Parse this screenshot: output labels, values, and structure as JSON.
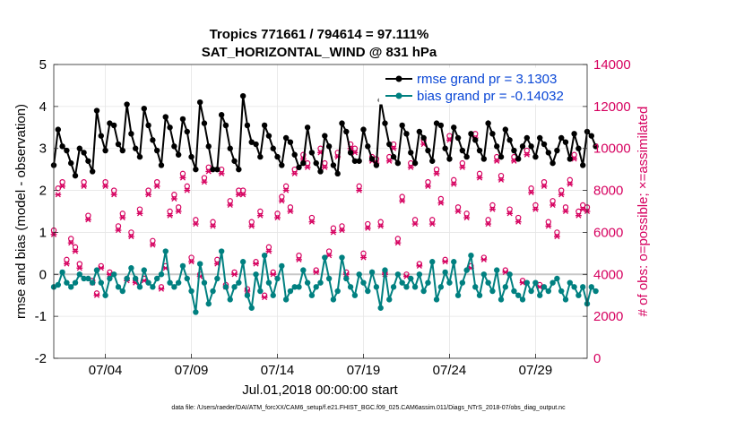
{
  "chart_data": {
    "type": "line",
    "title": "Tropics 771661 / 794614 = 97.111%",
    "subtitle": "SAT_HORIZONTAL_WIND @ 831 hPa",
    "xlabel": "Jul.01,2018 00:00:00 start",
    "ylabel_left": "rmse and bias (model - observation)",
    "ylabel_right": "# of obs: o=possible; ×=assimilated",
    "ylim_left": [
      -2,
      5
    ],
    "ylim_right": [
      0,
      14000
    ],
    "yticks_left": [
      "-2",
      "-1",
      "0",
      "1",
      "2",
      "3",
      "4",
      "5"
    ],
    "yticks_right": [
      "0",
      "2000",
      "4000",
      "6000",
      "8000",
      "10000",
      "12000",
      "14000"
    ],
    "xlim_days": [
      1,
      32
    ],
    "xticks": [
      {
        "day": 4,
        "label": "07/04"
      },
      {
        "day": 9,
        "label": "07/09"
      },
      {
        "day": 14,
        "label": "07/14"
      },
      {
        "day": 19,
        "label": "07/19"
      },
      {
        "day": 24,
        "label": "07/24"
      },
      {
        "day": 29,
        "label": "07/29"
      }
    ],
    "grid": true,
    "legend_position": "top-right",
    "series": [
      {
        "name": "rmse grand pr = 3.1303",
        "color": "#000000",
        "axis": "left",
        "start_day": 1.0,
        "step_days": 0.25,
        "values": [
          2.6,
          3.45,
          3.05,
          2.95,
          2.65,
          2.35,
          3.0,
          2.9,
          2.7,
          2.45,
          3.9,
          3.3,
          2.95,
          3.6,
          3.55,
          3.1,
          2.95,
          4.05,
          3.35,
          3.0,
          2.8,
          3.95,
          3.55,
          3.2,
          2.95,
          2.6,
          3.75,
          3.5,
          3.05,
          2.85,
          3.7,
          3.4,
          2.8,
          2.5,
          4.1,
          3.6,
          3.05,
          2.5,
          2.5,
          3.8,
          3.55,
          3.0,
          2.7,
          2.5,
          4.25,
          3.55,
          3.15,
          3.1,
          2.8,
          3.55,
          3.3,
          3.0,
          2.8,
          2.6,
          3.25,
          3.15,
          2.85,
          2.55,
          2.65,
          3.5,
          2.9,
          2.65,
          2.45,
          3.3,
          3.05,
          2.6,
          2.4,
          3.6,
          3.4,
          2.9,
          2.7,
          2.7,
          3.45,
          3.05,
          2.75,
          2.6,
          4.15,
          3.6,
          3.1,
          2.8,
          2.65,
          3.55,
          3.35,
          2.9,
          2.65,
          3.4,
          3.25,
          2.95,
          2.7,
          3.6,
          3.55,
          3.0,
          2.75,
          3.5,
          3.25,
          2.95,
          2.8,
          3.35,
          3.2,
          2.95,
          2.75,
          3.6,
          3.35,
          3.05,
          2.8,
          3.45,
          3.2,
          2.95,
          2.75,
          3.05,
          3.25,
          3.05,
          2.8,
          3.25,
          3.1,
          2.9,
          2.65,
          2.95,
          3.25,
          3.15,
          2.75,
          3.35,
          3.0,
          2.6,
          3.4,
          3.3,
          3.05
        ]
      },
      {
        "name": "bias grand pr = -0.14032",
        "color": "#008080",
        "axis": "left",
        "start_day": 1.0,
        "step_days": 0.25,
        "values": [
          -0.3,
          -0.25,
          0.05,
          -0.2,
          -0.3,
          -0.2,
          0.0,
          -0.1,
          -0.1,
          -0.2,
          0.1,
          -0.2,
          -0.5,
          -0.1,
          0.0,
          -0.3,
          -0.4,
          -0.1,
          0.15,
          -0.1,
          -0.3,
          0.1,
          -0.2,
          -0.3,
          -0.1,
          0.0,
          0.55,
          -0.2,
          -0.3,
          -0.2,
          0.2,
          -0.1,
          -0.4,
          -0.9,
          0.25,
          -0.2,
          -0.7,
          -0.4,
          -0.1,
          0.55,
          -0.3,
          -0.6,
          -0.3,
          -0.2,
          0.3,
          -0.5,
          -0.8,
          0.0,
          -0.4,
          0.45,
          -0.2,
          -0.5,
          -0.1,
          0.2,
          -0.6,
          -0.4,
          -0.3,
          -0.3,
          0.1,
          -0.2,
          -0.5,
          -0.3,
          -0.2,
          0.4,
          -0.1,
          -0.6,
          -0.4,
          0.4,
          -0.1,
          -0.3,
          -0.5,
          0.0,
          -0.2,
          -0.4,
          0.05,
          -0.3,
          -0.8,
          0.1,
          -0.6,
          -0.3,
          0.0,
          -0.2,
          -0.3,
          -0.1,
          -0.3,
          0.0,
          -0.4,
          -0.2,
          0.3,
          -0.6,
          -0.3,
          0.05,
          -0.2,
          0.3,
          -0.5,
          -0.2,
          0.1,
          0.45,
          -0.3,
          -0.5,
          0.0,
          -0.2,
          -0.4,
          0.1,
          -0.6,
          -0.3,
          0.0,
          -0.4,
          -0.5,
          -0.6,
          -0.2,
          -0.4,
          -0.2,
          -0.5,
          -0.3,
          -0.4,
          -0.2,
          -0.1,
          -0.4,
          -0.6,
          -0.2,
          -0.3,
          -0.5,
          -0.3,
          -0.7,
          -0.3,
          -0.4
        ]
      },
      {
        "name": "# obs possible",
        "color": "#d6005f",
        "marker": "o",
        "axis": "right",
        "start_day": 1.0,
        "step_days": 0.25,
        "values": [
          6100,
          8100,
          8400,
          4700,
          5700,
          5300,
          4500,
          8400,
          6800,
          3700,
          3100,
          4400,
          8400,
          4100,
          8000,
          6300,
          6900,
          3800,
          6000,
          3700,
          7100,
          3800,
          8000,
          5600,
          8400,
          3400,
          4400,
          7000,
          7800,
          7200,
          8800,
          8200,
          4800,
          6600,
          4000,
          8600,
          9100,
          6500,
          4700,
          9000,
          3500,
          7500,
          4100,
          8000,
          8000,
          3300,
          6500,
          4600,
          7000,
          3000,
          5300,
          4100,
          6900,
          7700,
          8200,
          7200,
          9000,
          4900,
          9700,
          9300,
          6700,
          4200,
          10000,
          9300,
          5100,
          6200,
          9800,
          6300,
          4100,
          10200,
          10000,
          8200,
          5000,
          6400,
          9600,
          9500,
          6500,
          4100,
          9600,
          10200,
          5700,
          7700,
          4000,
          9300,
          6600,
          4500,
          10400,
          8400,
          6600,
          9000,
          7600,
          4700,
          10600,
          8500,
          7200,
          9300,
          6900,
          4400,
          10700,
          8800,
          4800,
          6600,
          7300,
          9600,
          8700,
          4200,
          7100,
          9600,
          6700,
          3700,
          9900,
          8100,
          7300,
          3500,
          8400,
          6500,
          7500,
          6000,
          8000,
          7200,
          8500,
          9700,
          7000,
          7300,
          7200
        ]
      },
      {
        "name": "# obs assimilated",
        "color": "#d6005f",
        "marker": "x",
        "axis": "right",
        "start_day": 1.0,
        "step_days": 0.25,
        "values": [
          5900,
          7800,
          8200,
          4500,
          5500,
          5100,
          4300,
          8200,
          6600,
          3600,
          3000,
          4300,
          8200,
          4000,
          7800,
          6100,
          6700,
          3700,
          5800,
          3600,
          6900,
          3700,
          7800,
          5400,
          8200,
          3300,
          4300,
          6800,
          7600,
          7000,
          8600,
          8000,
          4600,
          6400,
          3900,
          8400,
          8900,
          6300,
          4500,
          8800,
          3400,
          7300,
          4000,
          7800,
          7800,
          3200,
          6300,
          4500,
          6800,
          2900,
          5100,
          4000,
          6700,
          7500,
          8000,
          7000,
          8800,
          4700,
          9500,
          9100,
          6500,
          4100,
          9800,
          9100,
          4900,
          6000,
          9600,
          6100,
          4000,
          10000,
          9800,
          8000,
          4800,
          6200,
          9400,
          9300,
          6300,
          4000,
          9400,
          10000,
          5500,
          7500,
          3900,
          9100,
          6400,
          4400,
          10200,
          8200,
          6400,
          8800,
          7400,
          4600,
          10400,
          8300,
          7000,
          9100,
          6700,
          4300,
          10500,
          8600,
          4700,
          6400,
          7100,
          9400,
          8500,
          4100,
          6900,
          9400,
          6500,
          3600,
          9700,
          7900,
          7100,
          3400,
          8200,
          6300,
          7300,
          5800,
          7800,
          7000,
          8300,
          9500,
          6800,
          7100,
          7000
        ]
      }
    ],
    "legend": [
      {
        "label": "rmse grand pr = 3.1303",
        "color": "#000000"
      },
      {
        "label": "bias grand pr = -0.14032",
        "color": "#008080"
      }
    ]
  },
  "footnote": "data file: /Users/raeder/DAI/ATM_forcXX/CAM6_setup/f.e21.FHIST_BGC.f09_025.CAM6assim.011/Diags_NTrS_2018-07/obs_diag_output.nc",
  "colors": {
    "left_axis": "#000000",
    "right_axis": "#d6005f",
    "rmse": "#000000",
    "bias": "#008080",
    "obs": "#d6005f",
    "zero_line": "#c8c8c8",
    "grid": "#e6e6e6",
    "legend_text": "#0a47d6"
  }
}
